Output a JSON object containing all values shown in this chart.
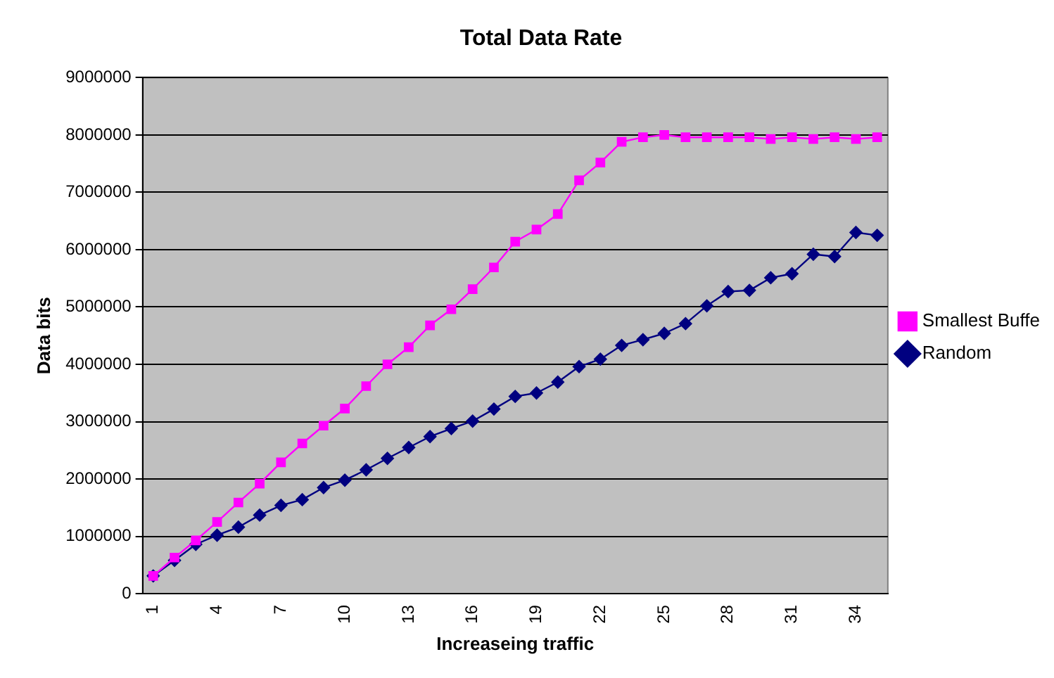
{
  "chart_data": {
    "type": "line",
    "title": "Total Data Rate",
    "xlabel": "Increaseing traffic",
    "ylabel": "Data bits",
    "categories": [
      "1",
      null,
      null,
      "4",
      null,
      null,
      "7",
      null,
      null,
      "10",
      null,
      null,
      "13",
      null,
      null,
      "16",
      null,
      null,
      "19",
      null,
      null,
      "22",
      null,
      null,
      "25",
      null,
      null,
      "28",
      null,
      null,
      "31",
      null,
      null,
      "34",
      null
    ],
    "ylim": [
      0,
      9000000
    ],
    "yticks": [
      0,
      1000000,
      2000000,
      3000000,
      4000000,
      5000000,
      6000000,
      7000000,
      8000000,
      9000000
    ],
    "grid": "y",
    "legend": "right",
    "line_style": "solid",
    "series": [
      {
        "name": "Smallest Buffe",
        "color": "#ff00ff",
        "marker": "square",
        "values": [
          310000,
          630000,
          930000,
          1250000,
          1590000,
          1920000,
          2290000,
          2620000,
          2930000,
          3230000,
          3620000,
          4000000,
          4300000,
          4680000,
          4960000,
          5310000,
          5690000,
          6140000,
          6350000,
          6620000,
          7210000,
          7520000,
          7880000,
          7960000,
          8000000,
          7960000,
          7960000,
          7960000,
          7960000,
          7930000,
          7960000,
          7930000,
          7960000,
          7930000,
          7960000
        ]
      },
      {
        "name": "Random",
        "color": "#000080",
        "marker": "diamond",
        "values": [
          310000,
          580000,
          860000,
          1020000,
          1160000,
          1370000,
          1540000,
          1640000,
          1850000,
          1980000,
          2160000,
          2360000,
          2550000,
          2740000,
          2880000,
          3010000,
          3220000,
          3440000,
          3500000,
          3690000,
          3960000,
          4090000,
          4330000,
          4430000,
          4540000,
          4710000,
          5020000,
          5270000,
          5290000,
          5510000,
          5580000,
          5920000,
          5880000,
          6300000,
          6250000
        ]
      }
    ]
  }
}
